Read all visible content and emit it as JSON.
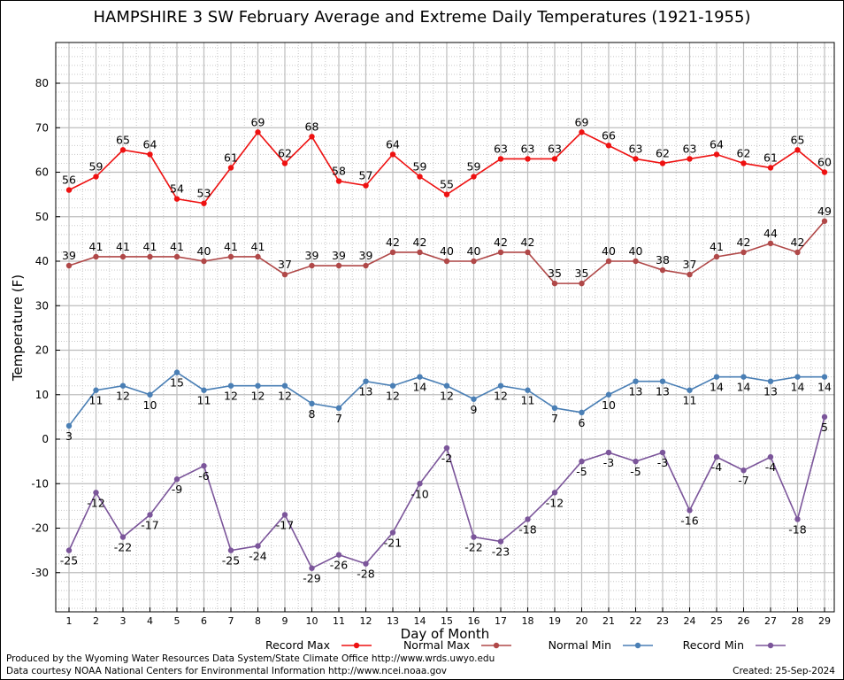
{
  "chart_data": {
    "type": "line",
    "title": "HAMPSHIRE 3 SW February Average and Extreme Daily Temperatures (1921-1955)",
    "xlabel": "Day of Month",
    "ylabel": "Temperature (F)",
    "xlim": [
      1,
      29
    ],
    "ylim": [
      -40,
      90
    ],
    "y_ticks": [
      -30,
      -20,
      -10,
      0,
      10,
      20,
      30,
      40,
      50,
      60,
      70,
      80
    ],
    "categories": [
      1,
      2,
      3,
      4,
      5,
      6,
      7,
      8,
      9,
      10,
      11,
      12,
      13,
      14,
      15,
      16,
      17,
      18,
      19,
      20,
      21,
      22,
      23,
      24,
      25,
      26,
      27,
      28,
      29
    ],
    "grid": true,
    "legend_position": "bottom",
    "series": [
      {
        "name": "Record Max",
        "color": "#ee1111",
        "label_position": "above",
        "values": [
          56,
          59,
          65,
          64,
          54,
          53,
          61,
          69,
          62,
          68,
          58,
          57,
          64,
          59,
          55,
          59,
          63,
          63,
          63,
          69,
          66,
          63,
          62,
          63,
          64,
          62,
          61,
          65,
          60
        ]
      },
      {
        "name": "Normal Max",
        "color": "#b04848",
        "label_position": "above",
        "values": [
          39,
          41,
          41,
          41,
          41,
          40,
          41,
          41,
          37,
          39,
          39,
          39,
          42,
          42,
          40,
          40,
          42,
          42,
          35,
          35,
          40,
          40,
          38,
          37,
          41,
          42,
          44,
          42,
          49
        ]
      },
      {
        "name": "Normal Min",
        "color": "#4a7fb5",
        "label_position": "below",
        "values": [
          3,
          11,
          12,
          10,
          15,
          11,
          12,
          12,
          12,
          8,
          7,
          13,
          12,
          14,
          12,
          9,
          12,
          11,
          7,
          6,
          10,
          13,
          13,
          11,
          14,
          14,
          13,
          14,
          14
        ]
      },
      {
        "name": "Record Min",
        "color": "#7b559a",
        "label_position": "below",
        "values": [
          -25,
          -12,
          -22,
          -17,
          -9,
          -6,
          -25,
          -24,
          -17,
          -29,
          -26,
          -28,
          -21,
          -10,
          -2,
          -22,
          -23,
          -18,
          -12,
          -5,
          -3,
          -5,
          -3,
          -16,
          -4,
          -7,
          -4,
          -18,
          5
        ]
      }
    ]
  },
  "footer": {
    "produced_by": "Produced by the Wyoming Water Resources Data System/State Climate Office http://www.wrds.uwyo.edu",
    "courtesy": "Data courtesy NOAA National Centers for Environmental Information http://www.ncei.noaa.gov",
    "created": "Created:  25-Sep-2024"
  }
}
